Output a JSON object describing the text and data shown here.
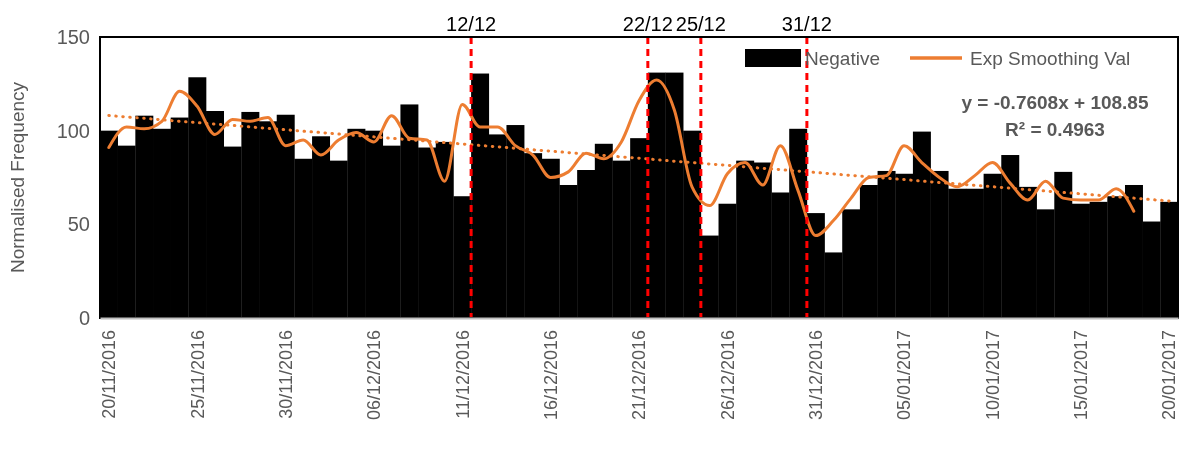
{
  "chart_data": {
    "type": "bar",
    "ylabel": "Normalised Frequency",
    "categories": [
      "20/11/2016",
      null,
      null,
      null,
      null,
      "25/11/2016",
      null,
      null,
      null,
      null,
      "30/11/2016",
      null,
      null,
      null,
      null,
      "06/12/2016",
      null,
      null,
      null,
      null,
      "11/12/2016",
      null,
      null,
      null,
      null,
      "16/12/2016",
      null,
      null,
      null,
      null,
      "21/12/2016",
      null,
      null,
      null,
      null,
      "26/12/2016",
      null,
      null,
      null,
      null,
      "31/12/2016",
      null,
      null,
      null,
      null,
      "05/01/2017",
      null,
      null,
      null,
      null,
      "10/01/2017",
      null,
      null,
      null,
      null,
      "15/01/2017",
      null,
      null,
      null,
      null,
      "20/01/2017"
    ],
    "series": [
      {
        "name": "Negative",
        "color": "#000000",
        "values": [
          100,
          92,
          108,
          101,
          107,
          128.5,
          110.5,
          91.5,
          110,
          105,
          108.5,
          85,
          97,
          84,
          101,
          100,
          92,
          114,
          91,
          94,
          65,
          130.5,
          98,
          103,
          88,
          85,
          71,
          79,
          93,
          84,
          96,
          131,
          131,
          100,
          44,
          61,
          84,
          83,
          67,
          101,
          56,
          35,
          58,
          71,
          78.5,
          77,
          99.5,
          78.5,
          69,
          69,
          77,
          87,
          70,
          58,
          78,
          61,
          62,
          65,
          71,
          51.5,
          62
        ]
      },
      {
        "name": "Exp Smoothing Val",
        "type": "line",
        "color": "#ed7d31",
        "line_style": "solid",
        "values": [
          91,
          102,
          101,
          105,
          121,
          113,
          98,
          106,
          105,
          107,
          92,
          95,
          87,
          95,
          99,
          94,
          108,
          96,
          95,
          73,
          114,
          102,
          102,
          92,
          87,
          75,
          78,
          88,
          85,
          94,
          116,
          127,
          111,
          70,
          60,
          77,
          83,
          71,
          92,
          68,
          44,
          52,
          64,
          75,
          76,
          92,
          83,
          75,
          70,
          76,
          83,
          72,
          63,
          73,
          64,
          63,
          63,
          69,
          57,
          null,
          null
        ]
      },
      {
        "type": "line",
        "color": "#ed7d31",
        "line_style": "dotted",
        "values": [
          108.1,
          107.3,
          106.6,
          105.8,
          105.0,
          104.3,
          103.5,
          102.8,
          102.0,
          101.2,
          100.5,
          99.7,
          99.0,
          98.2,
          97.4,
          96.7,
          95.9,
          95.2,
          94.4,
          93.6,
          92.9,
          92.1,
          91.4,
          90.6,
          89.8,
          89.1,
          88.3,
          87.5,
          86.8,
          86.0,
          85.3,
          84.5,
          83.7,
          83.0,
          82.2,
          81.5,
          80.7,
          79.9,
          79.2,
          78.4,
          77.7,
          76.9,
          76.1,
          75.4,
          74.6,
          73.9,
          73.1,
          72.3,
          71.6,
          70.8,
          70.1,
          69.3,
          68.5,
          67.8,
          67.0,
          66.3,
          65.5,
          64.7,
          64.0,
          63.2,
          62.5
        ]
      }
    ],
    "ylim": [
      0,
      150
    ],
    "yticks": [
      0,
      50,
      100,
      150
    ],
    "grid": false,
    "legend": "top right",
    "annotations": [
      "12/12",
      "22/12",
      "25/12",
      "31/12",
      "y = -0.7608x + 108.85",
      "R² = 0.4963"
    ]
  }
}
